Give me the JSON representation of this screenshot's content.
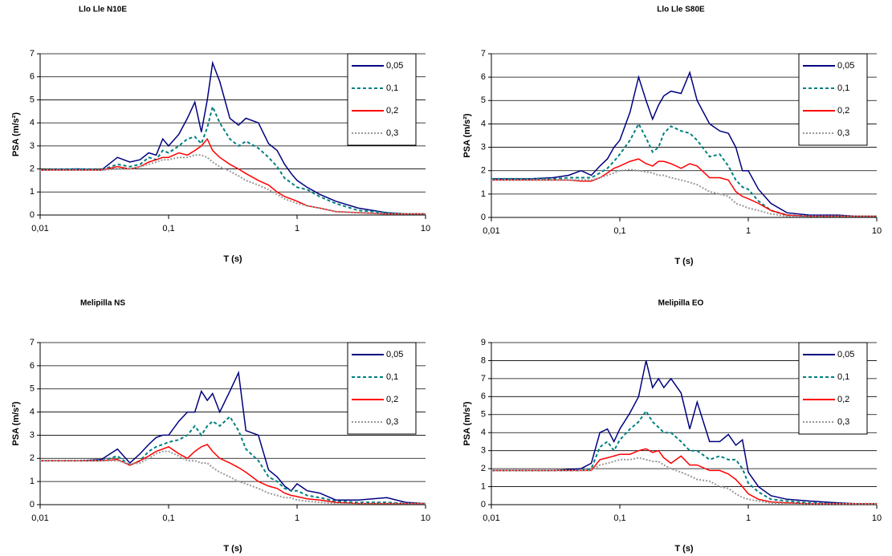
{
  "chart_data": [
    {
      "type": "line",
      "title": "Llo Lle N10E",
      "xlabel": "T (s)",
      "ylabel": "PSA (m/s²)",
      "xscale": "log",
      "grid": true,
      "legend": "upper right",
      "xlim": [
        0.01,
        10
      ],
      "xticks": [
        {
          "value": 0.01,
          "label": "0,01"
        },
        {
          "value": 0.1,
          "label": "0,1"
        },
        1,
        10
      ],
      "ylim": [
        0,
        7
      ],
      "yticks": [
        0,
        1,
        2,
        3,
        4,
        5,
        6,
        7
      ],
      "x": [
        0.01,
        0.02,
        0.03,
        0.04,
        0.05,
        0.06,
        0.07,
        0.08,
        0.09,
        0.1,
        0.12,
        0.14,
        0.16,
        0.18,
        0.2,
        0.22,
        0.25,
        0.3,
        0.35,
        0.4,
        0.5,
        0.6,
        0.7,
        0.8,
        0.9,
        1,
        1.2,
        1.5,
        2,
        3,
        5,
        7,
        10
      ],
      "series": [
        {
          "name": "0,05",
          "color": "#000080",
          "style": "solid",
          "values": [
            1.95,
            2.0,
            1.95,
            2.5,
            2.3,
            2.4,
            2.7,
            2.6,
            3.3,
            3.0,
            3.5,
            4.2,
            4.9,
            3.6,
            5.0,
            6.6,
            5.8,
            4.2,
            3.9,
            4.2,
            4.0,
            3.1,
            2.8,
            2.2,
            1.8,
            1.5,
            1.2,
            0.9,
            0.6,
            0.3,
            0.1,
            0.05,
            0.05
          ]
        },
        {
          "name": "0,1",
          "color": "#008080",
          "style": "dashed",
          "values": [
            1.95,
            2.0,
            1.95,
            2.2,
            2.1,
            2.2,
            2.5,
            2.4,
            2.8,
            2.7,
            3.0,
            3.3,
            3.4,
            3.1,
            3.8,
            4.7,
            4.0,
            3.3,
            3.0,
            3.2,
            2.9,
            2.5,
            2.1,
            1.6,
            1.4,
            1.2,
            1.1,
            0.8,
            0.5,
            0.2,
            0.1,
            0.05,
            0.05
          ]
        },
        {
          "name": "0,2",
          "color": "#ff0000",
          "style": "solid",
          "values": [
            1.95,
            1.95,
            1.95,
            2.1,
            2.0,
            2.1,
            2.3,
            2.4,
            2.5,
            2.5,
            2.7,
            2.6,
            2.8,
            3.0,
            3.3,
            2.8,
            2.5,
            2.2,
            2.0,
            1.8,
            1.5,
            1.3,
            1.0,
            0.8,
            0.7,
            0.6,
            0.4,
            0.3,
            0.15,
            0.1,
            0.05,
            0.05,
            0.05
          ]
        },
        {
          "name": "0,3",
          "color": "#999999",
          "style": "dotted",
          "values": [
            1.95,
            1.95,
            1.95,
            2.0,
            2.0,
            2.1,
            2.2,
            2.3,
            2.4,
            2.4,
            2.5,
            2.5,
            2.6,
            2.6,
            2.5,
            2.3,
            2.1,
            1.9,
            1.7,
            1.5,
            1.3,
            1.1,
            0.9,
            0.7,
            0.6,
            0.5,
            0.4,
            0.3,
            0.15,
            0.1,
            0.05,
            0.05,
            0.05
          ]
        }
      ]
    },
    {
      "type": "line",
      "title": "Llo Lle S80E",
      "xlabel": "T (s)",
      "ylabel": "PSA (m/s²)",
      "xscale": "log",
      "grid": true,
      "legend": "upper right",
      "xlim": [
        0.01,
        10
      ],
      "xticks": [
        {
          "value": 0.01,
          "label": "0,01"
        },
        {
          "value": 0.1,
          "label": "0,1"
        },
        1,
        10
      ],
      "ylim": [
        0,
        7
      ],
      "yticks": [
        0,
        1,
        2,
        3,
        4,
        5,
        6,
        7
      ],
      "x": [
        0.01,
        0.02,
        0.03,
        0.04,
        0.05,
        0.06,
        0.07,
        0.08,
        0.09,
        0.1,
        0.12,
        0.14,
        0.16,
        0.18,
        0.2,
        0.22,
        0.25,
        0.3,
        0.35,
        0.4,
        0.5,
        0.6,
        0.7,
        0.8,
        0.9,
        1,
        1.2,
        1.5,
        2,
        3,
        5,
        7,
        10
      ],
      "series": [
        {
          "name": "0,05",
          "color": "#000080",
          "style": "solid",
          "values": [
            1.65,
            1.65,
            1.7,
            1.8,
            2.0,
            1.8,
            2.2,
            2.5,
            3.0,
            3.3,
            4.5,
            6.0,
            5.0,
            4.2,
            4.8,
            5.2,
            5.4,
            5.3,
            6.2,
            5.0,
            4.0,
            3.7,
            3.6,
            3.0,
            2.0,
            2.0,
            1.2,
            0.6,
            0.2,
            0.1,
            0.1,
            0.05,
            0.05
          ]
        },
        {
          "name": "0,1",
          "color": "#008080",
          "style": "dashed",
          "values": [
            1.65,
            1.65,
            1.65,
            1.7,
            1.7,
            1.7,
            1.9,
            2.1,
            2.4,
            2.7,
            3.3,
            4.0,
            3.4,
            2.8,
            3.0,
            3.6,
            3.9,
            3.7,
            3.6,
            3.3,
            2.6,
            2.7,
            2.2,
            1.6,
            1.3,
            1.2,
            0.7,
            0.3,
            0.1,
            0.05,
            0.05,
            0.05,
            0.05
          ]
        },
        {
          "name": "0,2",
          "color": "#ff0000",
          "style": "solid",
          "values": [
            1.6,
            1.6,
            1.6,
            1.6,
            1.55,
            1.55,
            1.7,
            1.9,
            2.1,
            2.2,
            2.4,
            2.5,
            2.3,
            2.2,
            2.4,
            2.4,
            2.3,
            2.1,
            2.3,
            2.2,
            1.7,
            1.7,
            1.6,
            1.1,
            0.9,
            0.8,
            0.6,
            0.3,
            0.1,
            0.05,
            0.05,
            0.05,
            0.05
          ]
        },
        {
          "name": "0,3",
          "color": "#999999",
          "style": "dotted",
          "values": [
            1.6,
            1.6,
            1.6,
            1.6,
            1.6,
            1.6,
            1.7,
            1.8,
            1.9,
            2.0,
            2.05,
            2.0,
            1.95,
            1.9,
            1.8,
            1.8,
            1.7,
            1.6,
            1.5,
            1.4,
            1.1,
            1.0,
            0.9,
            0.6,
            0.5,
            0.4,
            0.3,
            0.15,
            0.05,
            0.05,
            0.05,
            0.05,
            0.05
          ]
        }
      ]
    },
    {
      "type": "line",
      "title": "Melipilla NS",
      "xlabel": "T (s)",
      "ylabel": "PSA (m/s²)",
      "xscale": "log",
      "grid": true,
      "legend": "upper right",
      "xlim": [
        0.01,
        10
      ],
      "xticks": [
        {
          "value": 0.01,
          "label": "0,01"
        },
        {
          "value": 0.1,
          "label": "0,1"
        },
        1,
        10
      ],
      "ylim": [
        0,
        7
      ],
      "yticks": [
        0,
        1,
        2,
        3,
        4,
        5,
        6,
        7
      ],
      "x": [
        0.01,
        0.02,
        0.03,
        0.04,
        0.05,
        0.06,
        0.07,
        0.08,
        0.09,
        0.1,
        0.12,
        0.14,
        0.16,
        0.18,
        0.2,
        0.22,
        0.25,
        0.3,
        0.35,
        0.4,
        0.5,
        0.6,
        0.7,
        0.8,
        0.9,
        1,
        1.2,
        1.5,
        2,
        3,
        5,
        7,
        10
      ],
      "series": [
        {
          "name": "0,05",
          "color": "#000080",
          "style": "solid",
          "values": [
            1.9,
            1.9,
            1.95,
            2.4,
            1.8,
            2.2,
            2.6,
            2.9,
            3.0,
            3.0,
            3.6,
            4.0,
            4.0,
            4.9,
            4.5,
            4.8,
            4.0,
            4.9,
            5.7,
            3.2,
            3.0,
            1.5,
            1.2,
            0.8,
            0.6,
            0.9,
            0.6,
            0.5,
            0.2,
            0.2,
            0.3,
            0.1,
            0.05
          ]
        },
        {
          "name": "0,1",
          "color": "#008080",
          "style": "dashed",
          "values": [
            1.9,
            1.9,
            1.9,
            2.1,
            1.7,
            1.9,
            2.3,
            2.5,
            2.6,
            2.7,
            2.8,
            3.0,
            3.4,
            3.0,
            3.4,
            3.6,
            3.4,
            3.8,
            3.2,
            2.4,
            1.9,
            1.2,
            1.0,
            0.7,
            0.6,
            0.6,
            0.4,
            0.3,
            0.15,
            0.1,
            0.1,
            0.05,
            0.05
          ]
        },
        {
          "name": "0,2",
          "color": "#ff0000",
          "style": "solid",
          "values": [
            1.9,
            1.9,
            1.9,
            1.95,
            1.7,
            1.9,
            2.1,
            2.3,
            2.4,
            2.5,
            2.2,
            2.0,
            2.3,
            2.5,
            2.6,
            2.3,
            2.0,
            1.8,
            1.6,
            1.4,
            1.0,
            0.8,
            0.7,
            0.5,
            0.4,
            0.35,
            0.25,
            0.2,
            0.1,
            0.05,
            0.05,
            0.05,
            0.05
          ]
        },
        {
          "name": "0,3",
          "color": "#999999",
          "style": "dotted",
          "values": [
            1.9,
            1.9,
            1.9,
            1.9,
            1.75,
            1.8,
            2.0,
            2.2,
            2.3,
            2.3,
            2.1,
            1.9,
            1.9,
            1.8,
            1.8,
            1.6,
            1.4,
            1.2,
            1.0,
            0.9,
            0.7,
            0.5,
            0.4,
            0.3,
            0.3,
            0.2,
            0.15,
            0.1,
            0.05,
            0.05,
            0.05,
            0.05,
            0.05
          ]
        }
      ]
    },
    {
      "type": "line",
      "title": "Melipilla EO",
      "xlabel": "T (s)",
      "ylabel": "PSA (m/s²)",
      "xscale": "log",
      "grid": true,
      "legend": "upper right",
      "xlim": [
        0.01,
        10
      ],
      "xticks": [
        {
          "value": 0.01,
          "label": "0,01"
        },
        {
          "value": 0.1,
          "label": "0,1"
        },
        1,
        10
      ],
      "ylim": [
        0,
        9
      ],
      "yticks": [
        0,
        1,
        2,
        3,
        4,
        5,
        6,
        7,
        8,
        9
      ],
      "x": [
        0.01,
        0.02,
        0.03,
        0.04,
        0.05,
        0.06,
        0.07,
        0.08,
        0.09,
        0.1,
        0.12,
        0.14,
        0.16,
        0.18,
        0.2,
        0.22,
        0.25,
        0.3,
        0.35,
        0.4,
        0.5,
        0.6,
        0.7,
        0.8,
        0.9,
        1,
        1.2,
        1.5,
        2,
        3,
        5,
        7,
        10
      ],
      "series": [
        {
          "name": "0,05",
          "color": "#000080",
          "style": "solid",
          "values": [
            1.9,
            1.9,
            1.9,
            1.95,
            2.0,
            2.3,
            4.0,
            4.2,
            3.5,
            4.2,
            5.1,
            6.0,
            8.0,
            6.5,
            7.0,
            6.5,
            7.0,
            6.2,
            4.2,
            5.7,
            3.5,
            3.5,
            3.9,
            3.3,
            3.6,
            1.8,
            1.0,
            0.5,
            0.3,
            0.2,
            0.1,
            0.05,
            0.05
          ]
        },
        {
          "name": "0,1",
          "color": "#008080",
          "style": "dashed",
          "values": [
            1.9,
            1.9,
            1.9,
            1.9,
            1.9,
            2.0,
            3.2,
            3.5,
            3.0,
            3.6,
            4.2,
            4.6,
            5.2,
            4.6,
            4.3,
            4.0,
            4.0,
            3.5,
            3.0,
            3.0,
            2.5,
            2.7,
            2.5,
            2.5,
            2.0,
            1.2,
            0.7,
            0.3,
            0.2,
            0.1,
            0.05,
            0.05,
            0.05
          ]
        },
        {
          "name": "0,2",
          "color": "#ff0000",
          "style": "solid",
          "values": [
            1.9,
            1.9,
            1.9,
            1.9,
            1.9,
            1.9,
            2.5,
            2.6,
            2.7,
            2.8,
            2.8,
            3.0,
            3.1,
            2.9,
            3.0,
            2.6,
            2.3,
            2.7,
            2.2,
            2.2,
            1.9,
            1.9,
            1.7,
            1.4,
            1.0,
            0.6,
            0.3,
            0.15,
            0.1,
            0.05,
            0.05,
            0.05,
            0.05
          ]
        },
        {
          "name": "0,3",
          "color": "#999999",
          "style": "dotted",
          "values": [
            1.9,
            1.9,
            1.9,
            1.9,
            1.9,
            1.9,
            2.2,
            2.3,
            2.4,
            2.5,
            2.5,
            2.6,
            2.5,
            2.4,
            2.4,
            2.2,
            2.0,
            1.8,
            1.6,
            1.4,
            1.3,
            1.0,
            0.9,
            0.6,
            0.4,
            0.3,
            0.2,
            0.1,
            0.05,
            0.05,
            0.05,
            0.05,
            0.05
          ]
        }
      ]
    }
  ]
}
